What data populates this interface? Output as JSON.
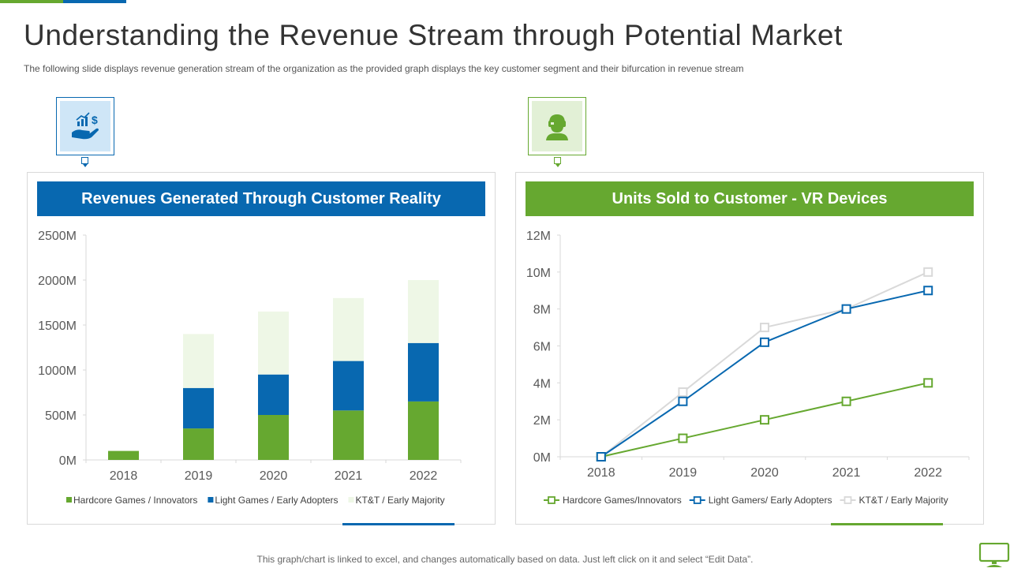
{
  "title": "Understanding the Revenue Stream through Potential Market",
  "subtitle": "The following  slide displays revenue  generation  stream of the organization  as the provided  graph displays the key customer segment and their bifurcation in revenue  stream",
  "footer": "This graph/chart is linked to excel,  and changes automatically based on data. Just left click on it and select “Edit Data”.",
  "colors": {
    "green": "#66a830",
    "blue": "#0868b0",
    "light_green": "#eef7e6",
    "light_gray": "#d9d9d9",
    "icon_bg_blue": "#cfe6f7",
    "icon_bg_green": "#e2f0d6"
  },
  "icons": {
    "left": "hand-money-growth-icon",
    "right": "vr-headset-user-icon",
    "corner": "monitor-icon"
  },
  "chart_data": [
    {
      "type": "bar",
      "stacked": true,
      "title": "Revenues Generated Through Customer Reality",
      "categories": [
        "2018",
        "2019",
        "2020",
        "2021",
        "2022"
      ],
      "series": [
        {
          "name": "Hardcore Games / Innovators",
          "values": [
            100,
            350,
            500,
            550,
            650
          ]
        },
        {
          "name": "Light Games / Early Adopters",
          "values": [
            0,
            450,
            450,
            550,
            650
          ]
        },
        {
          "name": "KT&T / Early Majority",
          "values": [
            0,
            600,
            700,
            700,
            700
          ]
        }
      ],
      "ylim": [
        0,
        2500
      ],
      "yticks": [
        0,
        500,
        1000,
        1500,
        2000,
        2500
      ],
      "ytick_labels": [
        "0M",
        "500M",
        "1000M",
        "1500M",
        "2000M",
        "2500M"
      ],
      "legend": "bottom"
    },
    {
      "type": "line",
      "title": "Units Sold to Customer  - VR Devices",
      "categories": [
        "2018",
        "2019",
        "2020",
        "2021",
        "2022"
      ],
      "series": [
        {
          "name": "Hardcore Games/Innovators",
          "values": [
            0,
            1,
            2,
            3,
            4
          ]
        },
        {
          "name": "Light Gamers/ Early Adopters",
          "values": [
            0,
            3,
            6.2,
            8,
            9
          ]
        },
        {
          "name": "KT&T / Early Majority",
          "values": [
            0,
            3.5,
            7,
            8,
            10
          ]
        }
      ],
      "ylim": [
        0,
        12
      ],
      "yticks": [
        0,
        2,
        4,
        6,
        8,
        10,
        12
      ],
      "ytick_labels": [
        "0M",
        "2M",
        "4M",
        "6M",
        "8M",
        "10M",
        "12M"
      ],
      "legend": "bottom"
    }
  ]
}
